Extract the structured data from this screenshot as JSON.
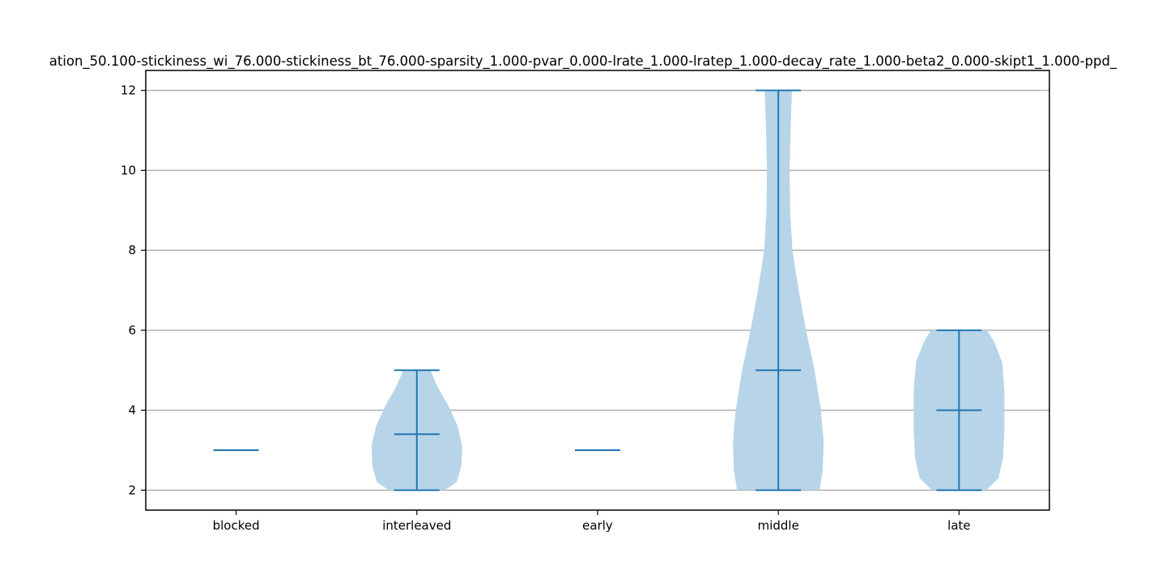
{
  "chart_data": {
    "type": "violin",
    "title": "ation_50.100-stickiness_wi_76.000-stickiness_bt_76.000-sparsity_1.000-pvar_0.000-lrate_1.000-lratep_1.000-decay_rate_1.000-beta2_0.000-skipt1_1.000-ppd_",
    "xlabel": "",
    "ylabel": "",
    "categories": [
      "blocked",
      "interleaved",
      "early",
      "middle",
      "late"
    ],
    "ylim": [
      1.5,
      12.5
    ],
    "yticks": [
      2,
      4,
      6,
      8,
      10,
      12
    ],
    "grid": "horizontal",
    "violins": [
      {
        "category": "blocked",
        "min": 3,
        "mean": 3,
        "max": 3,
        "density": []
      },
      {
        "category": "interleaved",
        "min": 2,
        "mean": 3.4,
        "max": 5,
        "density": [
          [
            2.0,
            0.62
          ],
          [
            2.2,
            0.88
          ],
          [
            2.6,
            0.98
          ],
          [
            3.1,
            1.0
          ],
          [
            3.6,
            0.9
          ],
          [
            4.1,
            0.7
          ],
          [
            4.6,
            0.45
          ],
          [
            5.0,
            0.3
          ]
        ]
      },
      {
        "category": "early",
        "min": 3,
        "mean": 3,
        "max": 3,
        "density": []
      },
      {
        "category": "middle",
        "min": 2,
        "mean": 5,
        "max": 12,
        "density": [
          [
            2.0,
            0.91
          ],
          [
            2.5,
            0.98
          ],
          [
            3.2,
            1.0
          ],
          [
            4.0,
            0.94
          ],
          [
            5.0,
            0.8
          ],
          [
            6.0,
            0.61
          ],
          [
            7.0,
            0.45
          ],
          [
            8.0,
            0.31
          ],
          [
            9.0,
            0.26
          ],
          [
            10.0,
            0.25
          ],
          [
            11.0,
            0.27
          ],
          [
            12.0,
            0.3
          ]
        ]
      },
      {
        "category": "late",
        "min": 2,
        "mean": 4,
        "max": 6,
        "density": [
          [
            2.0,
            0.6
          ],
          [
            2.3,
            0.87
          ],
          [
            2.8,
            0.97
          ],
          [
            3.5,
            1.0
          ],
          [
            4.0,
            1.0
          ],
          [
            4.5,
            1.0
          ],
          [
            5.2,
            0.95
          ],
          [
            5.7,
            0.78
          ],
          [
            6.0,
            0.62
          ]
        ]
      }
    ],
    "colors": {
      "body": "#b8d4e8",
      "lines": "#1f77b4",
      "grid": "#b0b0b0"
    }
  }
}
